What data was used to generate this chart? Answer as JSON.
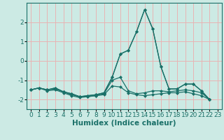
{
  "xlabel": "Humidex (Indice chaleur)",
  "ylabel": "",
  "background_color": "#cceae4",
  "grid_color": "#e8b4b4",
  "line_color": "#1a7068",
  "xlim": [
    -0.5,
    23.5
  ],
  "ylim": [
    -2.5,
    3.0
  ],
  "yticks": [
    -2,
    -1,
    0,
    1,
    2
  ],
  "xticks": [
    0,
    1,
    2,
    3,
    4,
    5,
    6,
    7,
    8,
    9,
    10,
    11,
    12,
    13,
    14,
    15,
    16,
    17,
    18,
    19,
    20,
    21,
    22,
    23
  ],
  "series": [
    [
      -1.5,
      -1.4,
      -1.5,
      -1.4,
      -1.6,
      -1.7,
      -1.85,
      -1.8,
      -1.75,
      -1.65,
      -0.85,
      0.35,
      0.55,
      1.5,
      2.65,
      1.65,
      -0.3,
      -1.45,
      -1.45,
      -1.2,
      -1.2,
      -1.55,
      -2.0,
      null
    ],
    [
      -1.5,
      -1.4,
      -1.5,
      -1.45,
      -1.6,
      -1.75,
      -1.85,
      -1.85,
      -1.8,
      -1.7,
      -1.0,
      -0.85,
      -1.55,
      -1.7,
      -1.65,
      -1.55,
      -1.55,
      -1.6,
      -1.55,
      -1.5,
      -1.55,
      -1.65,
      -2.0,
      null
    ],
    [
      -1.5,
      -1.4,
      -1.55,
      -1.5,
      -1.65,
      -1.8,
      -1.9,
      -1.85,
      -1.8,
      -1.75,
      -1.3,
      -1.35,
      -1.65,
      -1.75,
      -1.8,
      -1.75,
      -1.7,
      -1.65,
      -1.65,
      -1.6,
      -1.7,
      -1.8,
      -2.0,
      null
    ],
    [
      -1.5,
      -1.4,
      -1.5,
      -1.4,
      -1.6,
      -1.7,
      -1.85,
      -1.8,
      -1.75,
      -1.65,
      -0.85,
      0.35,
      0.55,
      1.5,
      2.65,
      1.65,
      -0.3,
      -1.45,
      -1.45,
      -1.2,
      -1.2,
      -1.55,
      -2.0,
      null
    ]
  ],
  "marker": "D",
  "marker_size": 2.0,
  "line_width": 0.9,
  "font_color": "#1a7068",
  "font_size": 6.5,
  "xlabel_fontsize": 7.5
}
